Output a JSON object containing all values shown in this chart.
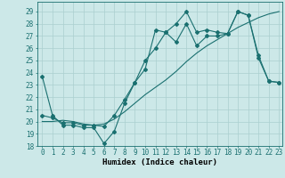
{
  "title": "",
  "xlabel": "Humidex (Indice chaleur)",
  "bg_color": "#cce8e8",
  "grid_color": "#aacfcf",
  "line_color": "#1a7070",
  "xlim": [
    -0.5,
    23.3
  ],
  "ylim": [
    18,
    29.8
  ],
  "yticks": [
    18,
    19,
    20,
    21,
    22,
    23,
    24,
    25,
    26,
    27,
    28,
    29
  ],
  "xticks": [
    0,
    1,
    2,
    3,
    4,
    5,
    6,
    7,
    8,
    9,
    10,
    11,
    12,
    13,
    14,
    15,
    16,
    17,
    18,
    19,
    20,
    21,
    22,
    23
  ],
  "line1_x": [
    0,
    1,
    2,
    3,
    4,
    5,
    6,
    7,
    8,
    9,
    10,
    11,
    12,
    13,
    14,
    15,
    16,
    17,
    18,
    19,
    20,
    21,
    22,
    23
  ],
  "line1_y": [
    23.7,
    20.5,
    19.7,
    19.7,
    19.5,
    19.5,
    18.2,
    19.2,
    21.5,
    23.2,
    24.3,
    27.5,
    27.3,
    28.0,
    29.0,
    27.3,
    27.5,
    27.3,
    27.2,
    29.0,
    28.7,
    25.2,
    23.3,
    23.2
  ],
  "line2_x": [
    0,
    1,
    2,
    3,
    4,
    5,
    6,
    7,
    8,
    9,
    10,
    11,
    12,
    13,
    14,
    15,
    16,
    17,
    18,
    19,
    20,
    21,
    22,
    23
  ],
  "line2_y": [
    20.0,
    20.0,
    20.1,
    20.0,
    19.8,
    19.7,
    19.8,
    20.2,
    20.8,
    21.5,
    22.2,
    22.8,
    23.4,
    24.1,
    24.9,
    25.6,
    26.2,
    26.7,
    27.2,
    27.7,
    28.1,
    28.5,
    28.8,
    29.0
  ],
  "line3_x": [
    0,
    1,
    2,
    3,
    4,
    5,
    6,
    7,
    8,
    9,
    10,
    11,
    12,
    13,
    14,
    15,
    16,
    17,
    18,
    19,
    20,
    21,
    22,
    23
  ],
  "line3_y": [
    20.5,
    20.3,
    19.9,
    19.9,
    19.7,
    19.7,
    19.6,
    20.5,
    21.8,
    23.2,
    25.0,
    26.0,
    27.3,
    26.5,
    28.0,
    26.2,
    27.0,
    27.0,
    27.2,
    29.0,
    28.7,
    25.4,
    23.3,
    23.2
  ],
  "marker": "D",
  "marker_size": 2.0,
  "linewidth": 0.8,
  "tick_fontsize": 5.5,
  "xlabel_fontsize": 6.5
}
